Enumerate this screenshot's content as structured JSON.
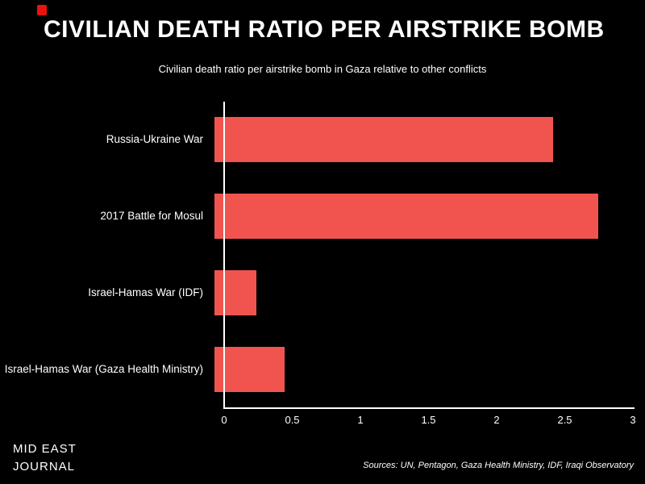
{
  "page": {
    "title": "CIVILIAN DEATH RATIO PER AIRSTRIKE BOMB",
    "subtitle": "Civilian death ratio per airstrike bomb in Gaza relative to other conflicts",
    "footer_brand_line1": "MID EAST",
    "footer_brand_line2": "JOURNAL",
    "sources": "Sources: UN, Pentagon, Gaza Health Ministry, IDF, Iraqi Observatory"
  },
  "colors": {
    "background": "#000000",
    "bar": "#f1544e",
    "text": "#ffffff",
    "accent_mark": "#e8130f"
  },
  "chart_data": {
    "type": "bar",
    "orientation": "horizontal",
    "title": "CIVILIAN DEATH RATIO PER AIRSTRIKE BOMB",
    "subtitle": "Civilian death ratio per airstrike bomb in Gaza relative to other conflicts",
    "categories": [
      "Russia-Ukraine War",
      "2017 Battle for Mosul",
      "Israel-Hamas War (IDF)",
      "Israel-Hamas War (Gaza Health Ministry)"
    ],
    "values": [
      2.43,
      2.75,
      0.3,
      0.5
    ],
    "xlabel": "",
    "ylabel": "",
    "xlim": [
      0,
      3
    ],
    "xticks": [
      0,
      0.5,
      1,
      1.5,
      2,
      2.5,
      3
    ],
    "xtick_labels": [
      "0",
      "0.5",
      "1",
      "1.5",
      "2",
      "2.5",
      "3"
    ],
    "grid": false,
    "legend": false,
    "bar_color": "#f1544e"
  }
}
